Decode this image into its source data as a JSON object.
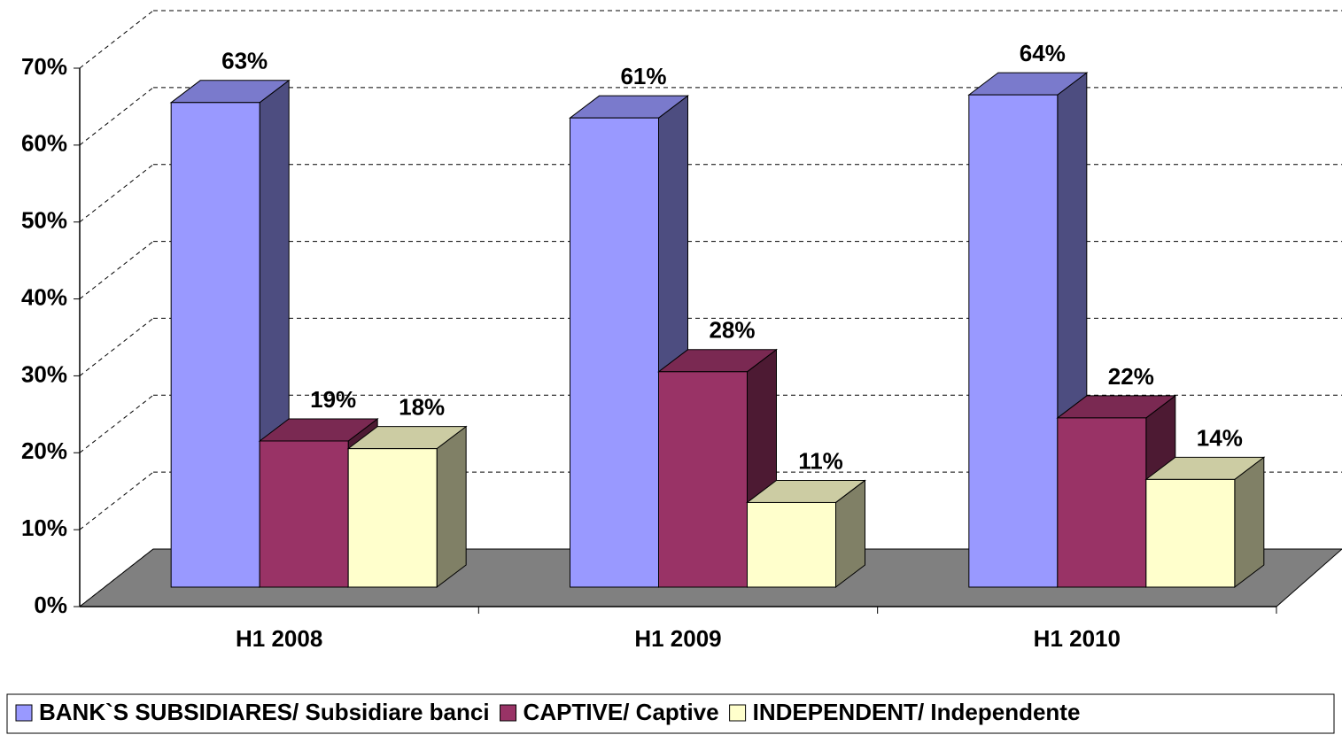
{
  "chart_data": {
    "type": "bar3d",
    "categories": [
      "H1 2008",
      "H1 2009",
      "H1 2010"
    ],
    "series": [
      {
        "name": "BANK`S SUBSIDIARES/ Subsidiare banci",
        "color": "#9999ff",
        "values": [
          63,
          61,
          64
        ],
        "value_labels": [
          "63%",
          "61%",
          "64%"
        ]
      },
      {
        "name": "CAPTIVE/ Captive",
        "color": "#993366",
        "values": [
          19,
          28,
          22
        ],
        "value_labels": [
          "19%",
          "28%",
          "22%"
        ]
      },
      {
        "name": "INDEPENDENT/ Independente",
        "color": "#ffffcc",
        "values": [
          18,
          11,
          14
        ],
        "value_labels": [
          "18%",
          "11%",
          "14%"
        ]
      }
    ],
    "ylim": [
      0,
      70
    ],
    "yticks": [
      {
        "value": 0,
        "label": "0%"
      },
      {
        "value": 10,
        "label": "10%"
      },
      {
        "value": 20,
        "label": "20%"
      },
      {
        "value": 30,
        "label": "30%"
      },
      {
        "value": 40,
        "label": "40%"
      },
      {
        "value": 50,
        "label": "50%"
      },
      {
        "value": 60,
        "label": "60%"
      },
      {
        "value": 70,
        "label": "70%"
      }
    ],
    "grid": true,
    "legend": "bottom"
  }
}
